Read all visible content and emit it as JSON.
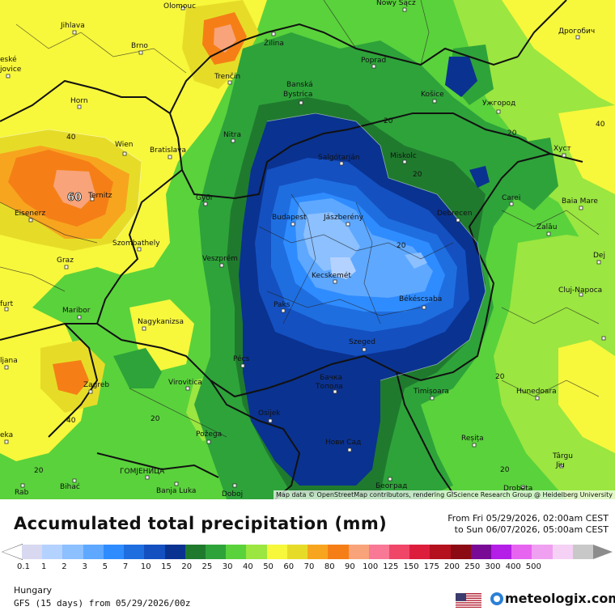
{
  "title": "Accumulated total precipitation (mm)",
  "period": {
    "from": "From Fri 05/29/2026, 02:00am CEST",
    "to": "to Sun 06/07/2026, 05:00am CEST"
  },
  "region": "Hungary",
  "model": "GFS (15 days) from 05/29/2026/00z",
  "brand": "meteologix.com",
  "brand_icon": "meteologix-globe-icon",
  "flag_icon": "us-flag-icon",
  "attribution": "Map data © OpenStreetMap contributors, rendering GIScience Research Group @ Heidelberg University",
  "legend": {
    "ticks": [
      "0.1",
      "1",
      "2",
      "3",
      "5",
      "7",
      "10",
      "15",
      "20",
      "25",
      "30",
      "40",
      "50",
      "60",
      "70",
      "80",
      "90",
      "100",
      "125",
      "150",
      "175",
      "200",
      "250",
      "300",
      "400",
      "500"
    ],
    "colors": [
      "#d8d8f0",
      "#b4d2ff",
      "#8cc0ff",
      "#5ea8ff",
      "#2f8cff",
      "#1f6ee0",
      "#1450c0",
      "#0a3290",
      "#1f7a2e",
      "#2ea33a",
      "#5ad23c",
      "#9be640",
      "#f7f73c",
      "#e6dc28",
      "#f7a51e",
      "#f57f16",
      "#f8a37a",
      "#f87896",
      "#f04668",
      "#dc1e3c",
      "#b4101e",
      "#8c0a14",
      "#780a96",
      "#b41ee6",
      "#e664f0",
      "#f0a0f0",
      "#f5d2f5",
      "#c8c8c8"
    ]
  },
  "cities": [
    {
      "name": "Olomouc"
    },
    {
      "name": "Nowy Sącz"
    },
    {
      "name": "Jihlava"
    },
    {
      "name": "Brno"
    },
    {
      "name": "Žilina"
    },
    {
      "name": "Poprad"
    },
    {
      "name": "Дрогобич"
    },
    {
      "name": "eské\njovice"
    },
    {
      "name": "Trenčín"
    },
    {
      "name": "Banská\nBystrica"
    },
    {
      "name": "Košice"
    },
    {
      "name": "Ужгород"
    },
    {
      "name": "Horn"
    },
    {
      "name": "Nitra"
    },
    {
      "name": "Wien"
    },
    {
      "name": "Bratislava"
    },
    {
      "name": "Salgótarján"
    },
    {
      "name": "Miskolc"
    },
    {
      "name": "Хуст"
    },
    {
      "name": "Ternitz"
    },
    {
      "name": "Győr"
    },
    {
      "name": "Carei"
    },
    {
      "name": "Baia Mare"
    },
    {
      "name": "Eisenerz"
    },
    {
      "name": "Budapest"
    },
    {
      "name": "Jászberény"
    },
    {
      "name": "Debrecen"
    },
    {
      "name": "Szombathely"
    },
    {
      "name": "Zalău"
    },
    {
      "name": "Graz"
    },
    {
      "name": "Veszprém"
    },
    {
      "name": "Dej"
    },
    {
      "name": "Kecskemét"
    },
    {
      "name": "Cluj-Napoca"
    },
    {
      "name": "furt"
    },
    {
      "name": "Maribor"
    },
    {
      "name": "Paks"
    },
    {
      "name": "Békéscsaba"
    },
    {
      "name": "Nagykanizsa"
    },
    {
      "name": "Szeged"
    },
    {
      "name": "ljana"
    },
    {
      "name": "Pécs"
    },
    {
      "name": "Zagreb"
    },
    {
      "name": "Virovitica"
    },
    {
      "name": "Бачка\nТопола"
    },
    {
      "name": "Timișoara"
    },
    {
      "name": "Hunedoara"
    },
    {
      "name": "Osijek"
    },
    {
      "name": "eka"
    },
    {
      "name": "Požega"
    },
    {
      "name": "Reșița"
    },
    {
      "name": "Нови Сад"
    },
    {
      "name": "Târgu\nJiu"
    },
    {
      "name": "ГОМЈЕНИЦА"
    },
    {
      "name": "Bihać"
    },
    {
      "name": "Banja Luka"
    },
    {
      "name": "Doboj"
    },
    {
      "name": "Београд"
    },
    {
      "name": "Drobeta"
    },
    {
      "name": "Rab"
    }
  ],
  "contour_labels": [
    "40",
    "20",
    "20",
    "40",
    "20",
    "20",
    "40",
    "20",
    "20",
    "20",
    "20",
    "60"
  ]
}
